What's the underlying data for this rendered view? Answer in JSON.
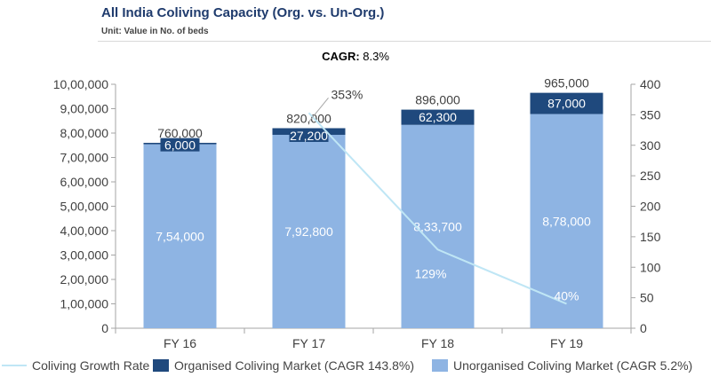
{
  "header": {
    "title": "All India Coliving Capacity (Org. vs. Un-Org.)",
    "subtitle": "Unit: Value in No. of beds",
    "cagr_label": "CAGR:",
    "cagr_value": "8.3%"
  },
  "colors": {
    "organised": "#1f497d",
    "unorganised": "#8eb4e3",
    "growth_line": "#bfe6f5",
    "axis": "#a6a6a6",
    "text": "#404040"
  },
  "chart_data": {
    "type": "bar",
    "stacked": true,
    "categories": [
      "FY 16",
      "FY 17",
      "FY 18",
      "FY 19"
    ],
    "series": [
      {
        "name": "Unorganised Coliving Market (CAGR 5.2%)",
        "values": [
          754000,
          792800,
          833700,
          878000
        ],
        "labels": [
          "7,54,000",
          "7,92,800",
          "8,33,700",
          "8,78,000"
        ],
        "color": "#8eb4e3"
      },
      {
        "name": "Organised Coliving Market (CAGR 143.8%)",
        "values": [
          6000,
          27200,
          62300,
          87000
        ],
        "labels": [
          "6,000",
          "27,200",
          "62,300",
          "87,000"
        ],
        "color": "#1f497d"
      }
    ],
    "totals": [
      760000,
      820000,
      896000,
      965000
    ],
    "total_labels": [
      "760,000",
      "820,000",
      "896,000",
      "965,000"
    ],
    "line_series": {
      "name": "Coliving Growth Rate",
      "axis": "secondary",
      "x": [
        "FY 17",
        "FY 18",
        "FY 19"
      ],
      "values": [
        353,
        129,
        40
      ],
      "labels": [
        "353%",
        "129%",
        "40%"
      ]
    },
    "y_left": {
      "min": 0,
      "max": 1000000,
      "ticks": [
        "0",
        "1,00,000",
        "2,00,000",
        "3,00,000",
        "4,00,000",
        "5,00,000",
        "6,00,000",
        "7,00,000",
        "8,00,000",
        "9,00,000",
        "10,00,000"
      ]
    },
    "y_right": {
      "min": 0,
      "max": 400,
      "ticks": [
        "0",
        "50",
        "100",
        "150",
        "200",
        "250",
        "300",
        "350",
        "400"
      ]
    },
    "grid": false,
    "legend_position": "bottom"
  }
}
